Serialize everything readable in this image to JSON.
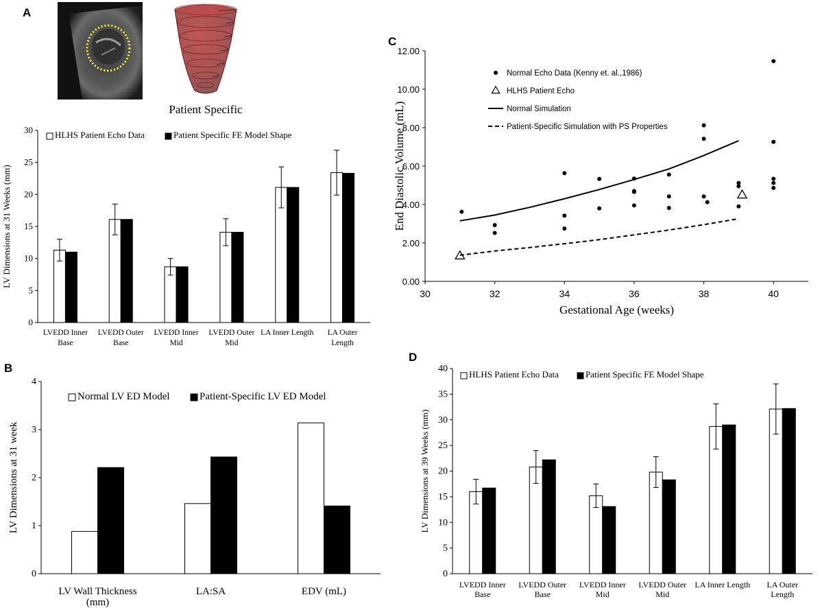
{
  "panels": {
    "a": "A",
    "b": "B",
    "c": "C",
    "d": "D"
  },
  "imagery": {
    "model_caption": "Patient Specific"
  },
  "colors": {
    "open_bar": "#ffffff",
    "filled_bar": "#000000",
    "axis": "#000000",
    "heart_red": "#8b1a1a",
    "dotted_outline": "#ffff33"
  },
  "chart_data": [
    {
      "id": "A",
      "type": "bar",
      "ylabel": "LV Dimensions at 31 Weeks (mm)",
      "ylim": [
        0,
        30
      ],
      "yticks": [
        0,
        5,
        10,
        15,
        20,
        25,
        30
      ],
      "categories": [
        [
          "LVEDD Inner",
          "Base"
        ],
        [
          "LVEDD Outer",
          "Base"
        ],
        [
          "LVEDD Inner",
          "Mid"
        ],
        [
          "LVEDD Outer",
          "Mid"
        ],
        [
          "LA Inner Length"
        ],
        [
          "LA Outer",
          "Length"
        ]
      ],
      "series": [
        {
          "name": "HLHS Patient Echo Data",
          "style": "open",
          "values": [
            11.3,
            16.1,
            8.7,
            14.1,
            21.1,
            23.4
          ],
          "errors": [
            1.7,
            2.4,
            1.3,
            2.1,
            3.2,
            3.5
          ]
        },
        {
          "name": "Patient Specific FE Model Shape",
          "style": "filled",
          "values": [
            11.0,
            16.1,
            8.7,
            14.1,
            21.1,
            23.3
          ]
        }
      ],
      "legend_position": "top"
    },
    {
      "id": "B",
      "type": "bar",
      "ylabel": "LV Dimensions at 31 week",
      "ylim": [
        0,
        4
      ],
      "yticks": [
        0,
        1,
        2,
        3,
        4
      ],
      "categories": [
        [
          "LV Wall Thickness",
          "(mm)"
        ],
        [
          "LA:SA"
        ],
        [
          "EDV (mL)"
        ]
      ],
      "series": [
        {
          "name": "Normal LV ED Model",
          "style": "open",
          "values": [
            0.88,
            1.46,
            3.14
          ]
        },
        {
          "name": "Patient-Specific LV ED Model",
          "style": "filled",
          "values": [
            2.21,
            2.43,
            1.41
          ]
        }
      ],
      "legend_position": "top"
    },
    {
      "id": "C",
      "type": "scatter",
      "xlabel": "Gestational Age (weeks)",
      "ylabel": "End Diastolic Volume (mL)",
      "xlim": [
        30,
        41
      ],
      "ylim": [
        0,
        12
      ],
      "xticks": [
        30,
        32,
        34,
        36,
        38,
        40
      ],
      "yticks": [
        "0.00",
        "2.00",
        "4.00",
        "6.00",
        "8.00",
        "10.00",
        "12.00"
      ],
      "series": [
        {
          "name": "Normal Echo Data (Kenny et. al.,1986)",
          "marker": "dot",
          "points": [
            [
              31.05,
              3.62
            ],
            [
              32.0,
              2.93
            ],
            [
              32.0,
              2.52
            ],
            [
              34.0,
              5.63
            ],
            [
              34.0,
              3.42
            ],
            [
              34.0,
              2.75
            ],
            [
              35.0,
              5.33
            ],
            [
              35.0,
              3.8
            ],
            [
              36.0,
              5.35
            ],
            [
              36.0,
              4.7
            ],
            [
              36.0,
              4.65
            ],
            [
              36.0,
              3.95
            ],
            [
              37.0,
              5.56
            ],
            [
              37.0,
              4.42
            ],
            [
              37.0,
              3.82
            ],
            [
              38.0,
              8.12
            ],
            [
              38.0,
              7.42
            ],
            [
              38.0,
              4.42
            ],
            [
              38.1,
              4.12
            ],
            [
              39.0,
              5.12
            ],
            [
              39.0,
              4.95
            ],
            [
              39.0,
              3.9
            ],
            [
              40.0,
              11.46
            ],
            [
              40.0,
              7.26
            ],
            [
              40.0,
              5.34
            ],
            [
              40.0,
              5.12
            ],
            [
              40.0,
              4.86
            ]
          ]
        },
        {
          "name": "HLHS Patient Echo",
          "marker": "triangle",
          "points": [
            [
              31.0,
              1.33
            ],
            [
              39.1,
              4.5
            ]
          ]
        },
        {
          "name": "Normal Simulation",
          "line": "solid",
          "points": [
            [
              31.0,
              3.15
            ],
            [
              32.0,
              3.45
            ],
            [
              33.0,
              3.85
            ],
            [
              34.0,
              4.3
            ],
            [
              35.0,
              4.78
            ],
            [
              36.0,
              5.3
            ],
            [
              37.0,
              5.85
            ],
            [
              38.0,
              6.55
            ],
            [
              39.0,
              7.32
            ]
          ]
        },
        {
          "name": "Patient-Specific Simulation with PS Properties",
          "line": "dashed",
          "points": [
            [
              31.0,
              1.36
            ],
            [
              32.0,
              1.58
            ],
            [
              33.0,
              1.76
            ],
            [
              34.0,
              1.96
            ],
            [
              35.0,
              2.17
            ],
            [
              36.0,
              2.42
            ],
            [
              37.0,
              2.67
            ],
            [
              38.0,
              2.95
            ],
            [
              39.0,
              3.26
            ]
          ]
        }
      ],
      "legend_position": "top-left"
    },
    {
      "id": "D",
      "type": "bar",
      "ylabel": "LV Dimensions at 39 Weeks (mm)",
      "ylim": [
        0,
        40
      ],
      "yticks": [
        0,
        5,
        10,
        15,
        20,
        25,
        30,
        35,
        40
      ],
      "categories": [
        [
          "LVEDD Inner",
          "Base"
        ],
        [
          "LVEDD Outer",
          "Base"
        ],
        [
          "LVEDD Inner",
          "Mid"
        ],
        [
          "LVEDD Outer",
          "Mid"
        ],
        [
          "LA Inner Length"
        ],
        [
          "LA Outer",
          "Length"
        ]
      ],
      "series": [
        {
          "name": "HLHS Patient Echo Data",
          "style": "open",
          "values": [
            16.0,
            20.8,
            15.2,
            19.8,
            28.7,
            32.1
          ],
          "errors": [
            2.4,
            3.2,
            2.3,
            3.0,
            4.4,
            4.9
          ]
        },
        {
          "name": "Patient Specific FE Model Shape",
          "style": "filled",
          "values": [
            16.7,
            22.2,
            13.1,
            18.3,
            29.0,
            32.2
          ]
        }
      ],
      "legend_position": "top"
    }
  ]
}
